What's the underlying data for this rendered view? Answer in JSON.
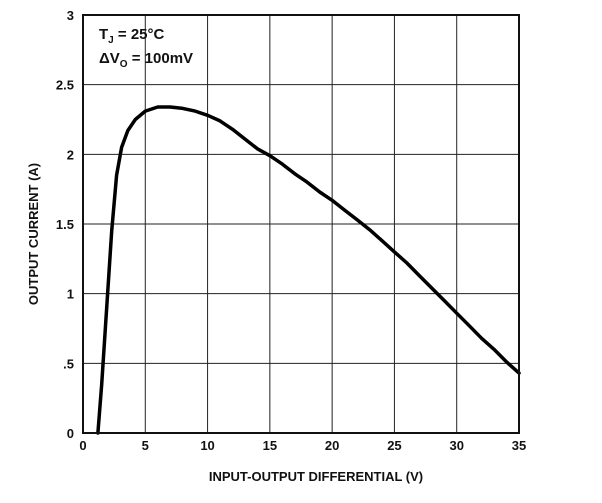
{
  "chart_data": {
    "type": "line",
    "title": "",
    "xlabel": "INPUT-OUTPUT DIFFERENTIAL (V)",
    "ylabel": "OUTPUT CURRENT (A)",
    "xlim": [
      0,
      35
    ],
    "ylim": [
      0,
      3
    ],
    "xticks": [
      "0",
      "5",
      "10",
      "15",
      "20",
      "25",
      "30",
      "35"
    ],
    "yticks": [
      "0",
      ".5",
      "1",
      "1.5",
      "2",
      "2.5",
      "3"
    ],
    "grid": true,
    "annotations": {
      "tj_main": "T",
      "tj_sub": "J",
      "tj_rest": " = 25°C",
      "dv_main": "ΔV",
      "dv_sub": "O",
      "dv_rest": " = 100mV"
    },
    "series": [
      {
        "color": "#000000",
        "x": [
          1.2,
          1.5,
          1.9,
          2.3,
          2.7,
          3.1,
          3.6,
          4.2,
          5.0,
          6.0,
          7.0,
          8.0,
          9.0,
          10.0,
          11.0,
          12.0,
          13.0,
          14.0,
          15.0,
          16.0,
          17.0,
          18.0,
          19.0,
          20.0,
          21.0,
          22.0,
          23.0,
          24.0,
          25.0,
          26.0,
          27.0,
          28.0,
          29.0,
          30.0,
          31.0,
          32.0,
          33.0,
          34.0,
          35.0
        ],
        "y": [
          0.0,
          0.35,
          0.9,
          1.45,
          1.85,
          2.05,
          2.17,
          2.25,
          2.31,
          2.34,
          2.34,
          2.33,
          2.31,
          2.28,
          2.24,
          2.18,
          2.11,
          2.04,
          1.99,
          1.93,
          1.86,
          1.8,
          1.73,
          1.67,
          1.6,
          1.53,
          1.46,
          1.38,
          1.3,
          1.22,
          1.13,
          1.04,
          0.95,
          0.86,
          0.77,
          0.68,
          0.6,
          0.51,
          0.43
        ]
      }
    ]
  }
}
